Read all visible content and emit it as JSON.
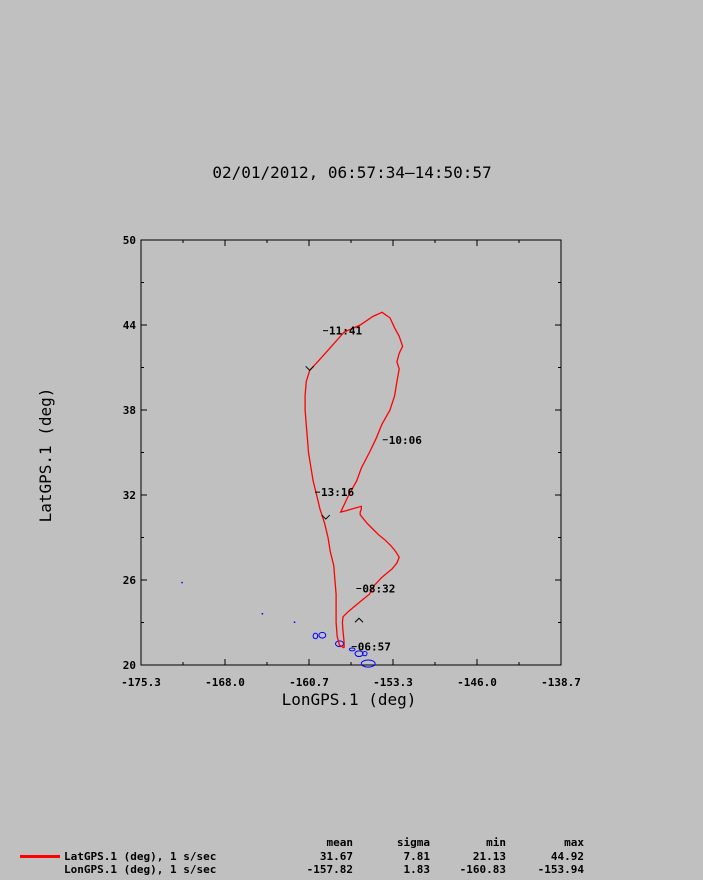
{
  "chart_data": {
    "type": "line",
    "title": "02/01/2012, 06:57:34–14:50:57",
    "xlabel": "LonGPS.1 (deg)",
    "ylabel": "LatGPS.1 (deg)",
    "xlim": [
      -175.3,
      -138.7
    ],
    "ylim": [
      20,
      50
    ],
    "xticks": [
      "-175.3",
      "-168.0",
      "-160.7",
      "-153.3",
      "-146.0",
      "-138.7"
    ],
    "yticks": [
      "20",
      "26",
      "32",
      "38",
      "44",
      "50"
    ],
    "grid": false,
    "colors": {
      "track": "#ff0000",
      "coast": "#0000ff"
    },
    "track": {
      "lon": [
        -157.6,
        -157.6,
        -157.7,
        -157.75,
        -157.7,
        -157.2,
        -156.6,
        -156.0,
        -155.4,
        -155.0,
        -154.3,
        -153.4,
        -153.0,
        -152.8,
        -153.1,
        -153.5,
        -154.0,
        -154.6,
        -155.1,
        -155.6,
        -156.0,
        -156.2,
        -156.2,
        -156.1,
        -156.1,
        -157.0,
        -157.4,
        -157.9,
        -157.6,
        -157.2,
        -156.5,
        -156.1,
        -155.4,
        -154.8,
        -154.3,
        -153.6,
        -153.2,
        -153.0,
        -152.8,
        -153.0,
        -152.8,
        -152.5,
        -152.8,
        -153.2,
        -153.6,
        -154.3,
        -155.1,
        -156.2,
        -157.6,
        -158.7,
        -159.8,
        -160.6,
        -160.9,
        -161.0,
        -161.0,
        -160.9,
        -160.8,
        -160.7,
        -160.5,
        -160.3,
        -160.0,
        -159.7,
        -159.3,
        -159.0,
        -158.8,
        -158.5,
        -158.4,
        -158.3,
        -158.3,
        -158.2,
        -158.0,
        -157.6
      ],
      "lat": [
        21.2,
        21.6,
        22.4,
        23.0,
        23.4,
        23.8,
        24.2,
        24.6,
        25.0,
        25.6,
        26.2,
        26.8,
        27.2,
        27.6,
        28.0,
        28.4,
        28.8,
        29.2,
        29.6,
        30.0,
        30.4,
        30.6,
        30.8,
        31.0,
        31.2,
        31.0,
        30.9,
        30.8,
        31.3,
        32.0,
        33.0,
        33.9,
        35.0,
        36.0,
        37.0,
        38.0,
        39.0,
        40.0,
        40.9,
        41.4,
        42.0,
        42.5,
        43.2,
        43.8,
        44.5,
        44.9,
        44.6,
        44.0,
        43.5,
        42.5,
        41.5,
        40.8,
        40.0,
        39.0,
        38.0,
        37.0,
        36.0,
        35.0,
        34.0,
        33.0,
        32.0,
        31.0,
        30.0,
        29.0,
        28.0,
        27.0,
        26.0,
        25.0,
        23.0,
        22.0,
        21.4,
        21.2
      ]
    },
    "direction_arrows": [
      {
        "lon": -160.6,
        "lat": 40.8,
        "dir": "down"
      },
      {
        "lon": -159.2,
        "lat": 30.3,
        "dir": "down"
      },
      {
        "lon": -156.3,
        "lat": 23.3,
        "dir": "up"
      }
    ],
    "time_annotations": [
      {
        "label": "11:41",
        "lon": -159.0,
        "lat": 43.6
      },
      {
        "label": "10:06",
        "lon": -153.8,
        "lat": 35.9
      },
      {
        "label": "13:16",
        "lon": -159.7,
        "lat": 32.2
      },
      {
        "label": "08:32",
        "lon": -156.1,
        "lat": 25.4
      },
      {
        "label": "06:57",
        "lon": -156.5,
        "lat": 21.3
      }
    ],
    "coastline_points": [
      {
        "lon": -171.7,
        "lat": 25.8
      },
      {
        "lon": -164.7,
        "lat": 23.6
      },
      {
        "lon": -161.9,
        "lat": 23.0
      }
    ],
    "coastline_islands": [
      {
        "lon": -160.1,
        "lat": 22.05,
        "rx": 0.2,
        "ry": 0.2
      },
      {
        "lon": -159.5,
        "lat": 22.1,
        "rx": 0.3,
        "ry": 0.2
      },
      {
        "lon": -158.0,
        "lat": 21.5,
        "rx": 0.35,
        "ry": 0.2
      },
      {
        "lon": -156.9,
        "lat": 21.1,
        "rx": 0.25,
        "ry": 0.1
      },
      {
        "lon": -156.3,
        "lat": 20.8,
        "rx": 0.35,
        "ry": 0.2
      },
      {
        "lon": -155.8,
        "lat": 20.8,
        "rx": 0.2,
        "ry": 0.15
      },
      {
        "lon": -155.5,
        "lat": 20.1,
        "rx": 0.6,
        "ry": 0.25
      }
    ]
  },
  "stats": {
    "headers": {
      "mean": "mean",
      "sigma": "sigma",
      "min": "min",
      "max": "max"
    },
    "rows": [
      {
        "label": "LatGPS.1 (deg), 1 s/sec",
        "color": "#ff0000",
        "mean": "31.67",
        "sigma": "7.81",
        "min": "21.13",
        "max": "44.92"
      },
      {
        "label": "LonGPS.1 (deg), 1 s/sec",
        "color": "",
        "mean": "-157.82",
        "sigma": "1.83",
        "min": "-160.83",
        "max": "-153.94"
      }
    ]
  }
}
